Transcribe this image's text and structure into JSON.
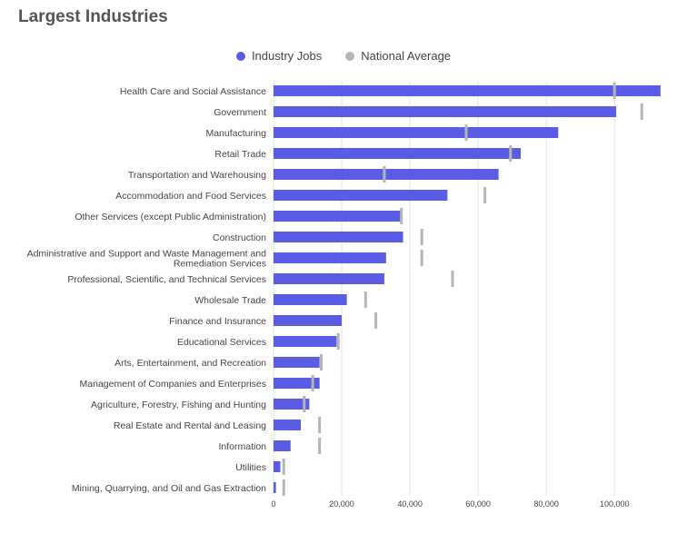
{
  "page": {
    "title": "Largest Industries"
  },
  "colors": {
    "industry": "#5b5ce6",
    "national": "#b5b5b5",
    "grid": "#e2e2e2"
  },
  "chart_data": {
    "type": "bar",
    "orientation": "horizontal",
    "title": "Largest Industries",
    "xlim": [
      0,
      113000
    ],
    "xticks": [
      0,
      20000,
      40000,
      60000,
      80000,
      100000
    ],
    "xtick_labels": [
      "0",
      "20,000",
      "40,000",
      "60,000",
      "80,000",
      "100,000"
    ],
    "grid": true,
    "legend_position": "top-center",
    "categories": [
      [
        "Health Care and Social Assistance"
      ],
      [
        "Government"
      ],
      [
        "Manufacturing"
      ],
      [
        "Retail Trade"
      ],
      [
        "Transportation and Warehousing"
      ],
      [
        "Accommodation and Food Services"
      ],
      [
        "Other Services (except Public Administration)"
      ],
      [
        "Construction"
      ],
      [
        "Administrative and Support and Waste Management and",
        "Remediation Services"
      ],
      [
        "Professional, Scientific, and Technical Services"
      ],
      [
        "Wholesale Trade"
      ],
      [
        "Finance and Insurance"
      ],
      [
        "Educational Services"
      ],
      [
        "Arts, Entertainment, and Recreation"
      ],
      [
        "Management of Companies and Enterprises"
      ],
      [
        "Agriculture, Forestry, Fishing and Hunting"
      ],
      [
        "Real Estate and Rental and Leasing"
      ],
      [
        "Information"
      ],
      [
        "Utilities"
      ],
      [
        "Mining, Quarrying, and Oil and Gas Extraction"
      ]
    ],
    "series": [
      {
        "name": "Industry Jobs",
        "mark": "bar",
        "values": [
          113500,
          100500,
          83500,
          72500,
          66000,
          51000,
          37500,
          38000,
          33000,
          32500,
          21500,
          20000,
          18500,
          13500,
          13500,
          10500,
          8000,
          5000,
          2000,
          700
        ]
      },
      {
        "name": "National Average",
        "mark": "tick",
        "values": [
          100000,
          108000,
          56500,
          69500,
          32500,
          62000,
          37500,
          43500,
          43500,
          52500,
          27000,
          30000,
          19000,
          14000,
          11500,
          9000,
          13500,
          13500,
          3000,
          3000
        ]
      }
    ]
  }
}
